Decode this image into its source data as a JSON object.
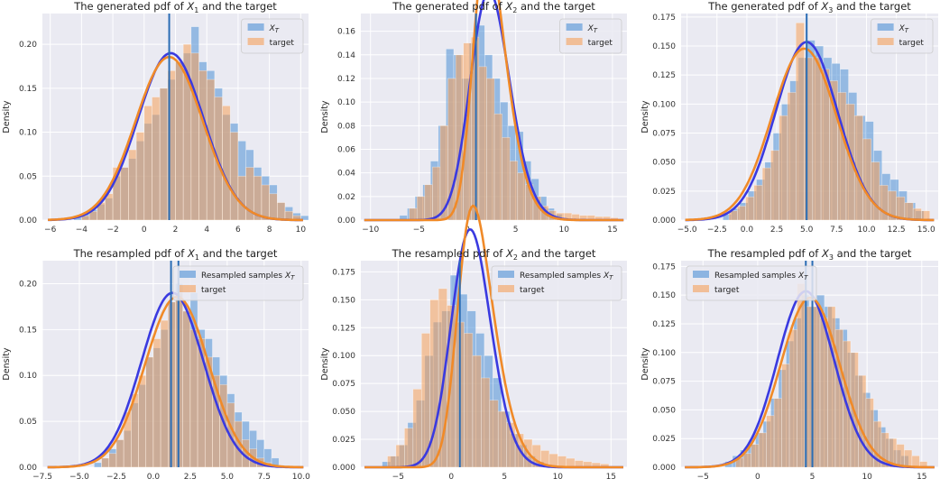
{
  "colors": {
    "panel_bg": "#eaeaf2",
    "grid": "#ffffff",
    "generated": "#4c8fd6",
    "target": "#f5a05a",
    "generated_kde": "#3a3ae0",
    "target_kde": "#f08a28",
    "mean_line": "#2a6db5"
  },
  "chart_data": [
    {
      "type": "histogram-kde",
      "title_prefix": "The generated pdf of ",
      "title_var": "X",
      "title_sub": "1",
      "title_suffix": " and the target",
      "ylabel": "Density",
      "xlim": [
        -6.5,
        10.5
      ],
      "ylim": [
        0,
        0.235
      ],
      "xticks": [
        -6,
        -4,
        -2,
        0,
        2,
        4,
        6,
        8,
        10
      ],
      "xtick_labels": [
        "−6",
        "−4",
        "−2",
        "0",
        "2",
        "4",
        "6",
        "8",
        "10"
      ],
      "yticks": [
        0,
        0.05,
        0.1,
        0.15,
        0.2
      ],
      "ytick_labels": [
        "0.00",
        "0.05",
        "0.10",
        "0.15",
        "0.20"
      ],
      "legend": {
        "loc": "upper-right",
        "entries": [
          {
            "var": "X",
            "sub": "T",
            "prefix": ""
          },
          {
            "text": "target"
          }
        ]
      },
      "mean_lines": [
        1.6
      ],
      "generated": {
        "mean": 1.7,
        "sd": 2.1,
        "bin_start": -4.5,
        "bin_width": 0.5,
        "density": [
          0.003,
          0.007,
          0.012,
          0.018,
          0.025,
          0.05,
          0.06,
          0.07,
          0.09,
          0.11,
          0.12,
          0.15,
          0.16,
          0.18,
          0.19,
          0.22,
          0.18,
          0.17,
          0.15,
          0.12,
          0.11,
          0.09,
          0.08,
          0.06,
          0.05,
          0.04,
          0.02,
          0.015,
          0.008,
          0.005
        ]
      },
      "target": {
        "mean": 1.6,
        "sd": 2.15,
        "bin_start": -4.0,
        "bin_width": 0.5,
        "density": [
          0.005,
          0.01,
          0.02,
          0.03,
          0.06,
          0.06,
          0.08,
          0.1,
          0.13,
          0.14,
          0.15,
          0.17,
          0.18,
          0.2,
          0.19,
          0.17,
          0.16,
          0.14,
          0.13,
          0.1,
          0.05,
          0.06,
          0.05,
          0.04,
          0.03,
          0.02,
          0.01,
          0.005
        ]
      }
    },
    {
      "type": "histogram-kde",
      "title_prefix": "The generated pdf of ",
      "title_var": "X",
      "title_sub": "2",
      "title_suffix": " and the target",
      "ylabel": "Density",
      "xlim": [
        -11,
        16.5
      ],
      "ylim": [
        0,
        0.175
      ],
      "xticks": [
        -10,
        -5,
        0,
        5,
        10,
        15
      ],
      "xtick_labels": [
        "−10",
        "−5",
        "0",
        "5",
        "10",
        "15"
      ],
      "yticks": [
        0,
        0.02,
        0.04,
        0.06,
        0.08,
        0.1,
        0.12,
        0.14,
        0.16
      ],
      "ytick_labels": [
        "0.00",
        "0.02",
        "0.04",
        "0.06",
        "0.08",
        "0.10",
        "0.12",
        "0.14",
        "0.16"
      ],
      "legend": {
        "loc": "upper-right",
        "entries": [
          {
            "var": "X",
            "sub": "T",
            "prefix": ""
          },
          {
            "text": "target"
          }
        ]
      },
      "mean_lines": [
        0.9
      ],
      "generated": {
        "mean": 0.8,
        "sd": 2.7,
        "skew": 1.3,
        "bin_start": -7.0,
        "bin_width": 0.8,
        "density": [
          0.004,
          0.01,
          0.02,
          0.03,
          0.05,
          0.08,
          0.145,
          0.14,
          0.12,
          0.15,
          0.165,
          0.14,
          0.12,
          0.1,
          0.08,
          0.075,
          0.05,
          0.035,
          0.02,
          0.01,
          0.005
        ]
      },
      "target": {
        "mean": 0.7,
        "sd": 2.6,
        "skew": 2.2,
        "bin_start": -6.0,
        "bin_width": 0.8,
        "density": [
          0.01,
          0.02,
          0.03,
          0.045,
          0.08,
          0.12,
          0.14,
          0.15,
          0.155,
          0.13,
          0.12,
          0.09,
          0.07,
          0.05,
          0.04,
          0.03,
          0.02,
          0.012,
          0.008,
          0.006,
          0.006,
          0.005,
          0.004,
          0.004,
          0.003,
          0.003,
          0.002
        ]
      }
    },
    {
      "type": "histogram-kde",
      "title_prefix": "The generated pdf of ",
      "title_var": "X",
      "title_sub": "3",
      "title_suffix": " and the target",
      "ylabel": "Density",
      "xlim": [
        -5.5,
        16
      ],
      "ylim": [
        0,
        0.178
      ],
      "xticks": [
        -5,
        -2.5,
        0,
        2.5,
        5,
        7.5,
        10,
        12.5,
        15
      ],
      "xtick_labels": [
        "−5.0",
        "−2.5",
        "0.0",
        "2.5",
        "5.0",
        "7.5",
        "10.0",
        "12.5",
        "15.0"
      ],
      "yticks": [
        0,
        0.025,
        0.05,
        0.075,
        0.1,
        0.125,
        0.15,
        0.175
      ],
      "ytick_labels": [
        "0.000",
        "0.025",
        "0.050",
        "0.075",
        "0.100",
        "0.125",
        "0.150",
        "0.175"
      ],
      "legend": {
        "loc": "upper-right",
        "entries": [
          {
            "var": "X",
            "sub": "T",
            "prefix": ""
          },
          {
            "text": "target"
          }
        ]
      },
      "mean_lines": [
        5.0
      ],
      "generated": {
        "mean": 5.0,
        "sd": 2.6,
        "bin_start": -2.0,
        "bin_width": 0.7,
        "density": [
          0.005,
          0.01,
          0.015,
          0.025,
          0.035,
          0.05,
          0.075,
          0.1,
          0.12,
          0.14,
          0.155,
          0.15,
          0.14,
          0.135,
          0.13,
          0.11,
          0.09,
          0.085,
          0.06,
          0.04,
          0.035,
          0.025,
          0.015,
          0.008
        ]
      },
      "target": {
        "mean": 4.8,
        "sd": 2.7,
        "bin_start": -1.5,
        "bin_width": 0.7,
        "density": [
          0.008,
          0.012,
          0.02,
          0.03,
          0.045,
          0.06,
          0.09,
          0.11,
          0.17,
          0.14,
          0.14,
          0.13,
          0.12,
          0.11,
          0.1,
          0.09,
          0.07,
          0.05,
          0.03,
          0.025,
          0.02,
          0.015,
          0.01,
          0.008
        ]
      }
    },
    {
      "type": "histogram-kde",
      "title_prefix": "The resampled pdf of ",
      "title_var": "X",
      "title_sub": "1",
      "title_suffix": " and the target",
      "ylabel": "Density",
      "xlim": [
        -7.5,
        10.5
      ],
      "ylim": [
        0,
        0.225
      ],
      "xticks": [
        -7.5,
        -5,
        -2.5,
        0,
        2.5,
        5,
        7.5,
        10
      ],
      "xtick_labels": [
        "−7.5",
        "−5.0",
        "−2.5",
        "0.0",
        "2.5",
        "5.0",
        "7.5",
        "10.0"
      ],
      "yticks": [
        0,
        0.05,
        0.1,
        0.15,
        0.2
      ],
      "ytick_labels": [
        "0.00",
        "0.05",
        "0.10",
        "0.15",
        "0.20"
      ],
      "legend": {
        "loc": "upper-right",
        "entries": [
          {
            "var": "X",
            "sub": "T",
            "prefix": "Resampled samples "
          },
          {
            "text": "target"
          }
        ]
      },
      "mean_lines": [
        1.2,
        1.7
      ],
      "generated": {
        "mean": 1.3,
        "sd": 2.1,
        "bin_start": -4.0,
        "bin_width": 0.5,
        "density": [
          0.005,
          0.01,
          0.02,
          0.03,
          0.04,
          0.07,
          0.09,
          0.12,
          0.13,
          0.15,
          0.18,
          0.2,
          0.17,
          0.19,
          0.15,
          0.14,
          0.12,
          0.1,
          0.08,
          0.06,
          0.05,
          0.04,
          0.03,
          0.02,
          0.01
        ]
      },
      "target": {
        "mean": 1.6,
        "sd": 2.15,
        "bin_start": -3.5,
        "bin_width": 0.5,
        "density": [
          0.01,
          0.015,
          0.03,
          0.06,
          0.08,
          0.1,
          0.12,
          0.14,
          0.16,
          0.18,
          0.19,
          0.17,
          0.15,
          0.14,
          0.12,
          0.1,
          0.09,
          0.07,
          0.05,
          0.03,
          0.02,
          0.01,
          0.005
        ]
      }
    },
    {
      "type": "histogram-kde",
      "title_prefix": "The resampled pdf of ",
      "title_var": "X",
      "title_sub": "2",
      "title_suffix": " and the target",
      "ylabel": "Density",
      "xlim": [
        -8.5,
        16.5
      ],
      "ylim": [
        0,
        0.185
      ],
      "xticks": [
        -5,
        0,
        5,
        10,
        15
      ],
      "xtick_labels": [
        "−5",
        "0",
        "5",
        "10",
        "15"
      ],
      "yticks": [
        0,
        0.025,
        0.05,
        0.075,
        0.1,
        0.125,
        0.15,
        0.175
      ],
      "ytick_labels": [
        "0.000",
        "0.025",
        "0.050",
        "0.075",
        "0.100",
        "0.125",
        "0.150",
        "0.175"
      ],
      "legend": {
        "loc": "upper-right",
        "entries": [
          {
            "var": "X",
            "sub": "T",
            "prefix": "Resampled samples "
          },
          {
            "text": "target"
          }
        ]
      },
      "mean_lines": [
        0.8
      ],
      "generated": {
        "mean": 0.5,
        "sd": 2.4,
        "skew": 1.2,
        "bin_start": -6.5,
        "bin_width": 0.8,
        "density": [
          0.005,
          0.01,
          0.02,
          0.04,
          0.06,
          0.1,
          0.13,
          0.14,
          0.172,
          0.155,
          0.14,
          0.12,
          0.1,
          0.08,
          0.05,
          0.03,
          0.02,
          0.01,
          0.005
        ]
      },
      "target": {
        "mean": 0.7,
        "sd": 2.6,
        "skew": 2.2,
        "bin_start": -6.0,
        "bin_width": 0.8,
        "density": [
          0.01,
          0.02,
          0.035,
          0.07,
          0.12,
          0.15,
          0.16,
          0.145,
          0.13,
          0.12,
          0.1,
          0.08,
          0.06,
          0.05,
          0.04,
          0.03,
          0.025,
          0.02,
          0.015,
          0.012,
          0.01,
          0.008,
          0.006,
          0.005,
          0.004,
          0.003
        ]
      }
    },
    {
      "type": "histogram-kde",
      "title_prefix": "The resampled pdf of ",
      "title_var": "X",
      "title_sub": "3",
      "title_suffix": " and the target",
      "ylabel": "Density",
      "xlim": [
        -7,
        16.5
      ],
      "ylim": [
        0,
        0.18
      ],
      "xticks": [
        -5,
        0,
        5,
        10,
        15
      ],
      "xtick_labels": [
        "−5",
        "0",
        "5",
        "10",
        "15"
      ],
      "yticks": [
        0,
        0.025,
        0.05,
        0.075,
        0.1,
        0.125,
        0.15,
        0.175
      ],
      "ytick_labels": [
        "0.000",
        "0.025",
        "0.050",
        "0.075",
        "0.100",
        "0.125",
        "0.150",
        "0.175"
      ],
      "legend": {
        "loc": "upper-left",
        "entries": [
          {
            "var": "X",
            "sub": "T",
            "prefix": "Resampled samples "
          },
          {
            "text": "target"
          }
        ]
      },
      "mean_lines": [
        4.4,
        5.0
      ],
      "generated": {
        "mean": 4.4,
        "sd": 2.6,
        "bin_start": -3.0,
        "bin_width": 0.7,
        "density": [
          0.005,
          0.01,
          0.015,
          0.02,
          0.03,
          0.04,
          0.06,
          0.085,
          0.11,
          0.13,
          0.15,
          0.14,
          0.15,
          0.14,
          0.13,
          0.12,
          0.1,
          0.08,
          0.065,
          0.05,
          0.035,
          0.025,
          0.015,
          0.01
        ]
      },
      "target": {
        "mean": 4.8,
        "sd": 2.7,
        "bin_start": -2.0,
        "bin_width": 0.7,
        "density": [
          0.008,
          0.012,
          0.02,
          0.03,
          0.045,
          0.06,
          0.09,
          0.12,
          0.16,
          0.14,
          0.14,
          0.13,
          0.14,
          0.12,
          0.11,
          0.1,
          0.08,
          0.06,
          0.04,
          0.03,
          0.025,
          0.02,
          0.015,
          0.01,
          0.005
        ]
      }
    }
  ]
}
